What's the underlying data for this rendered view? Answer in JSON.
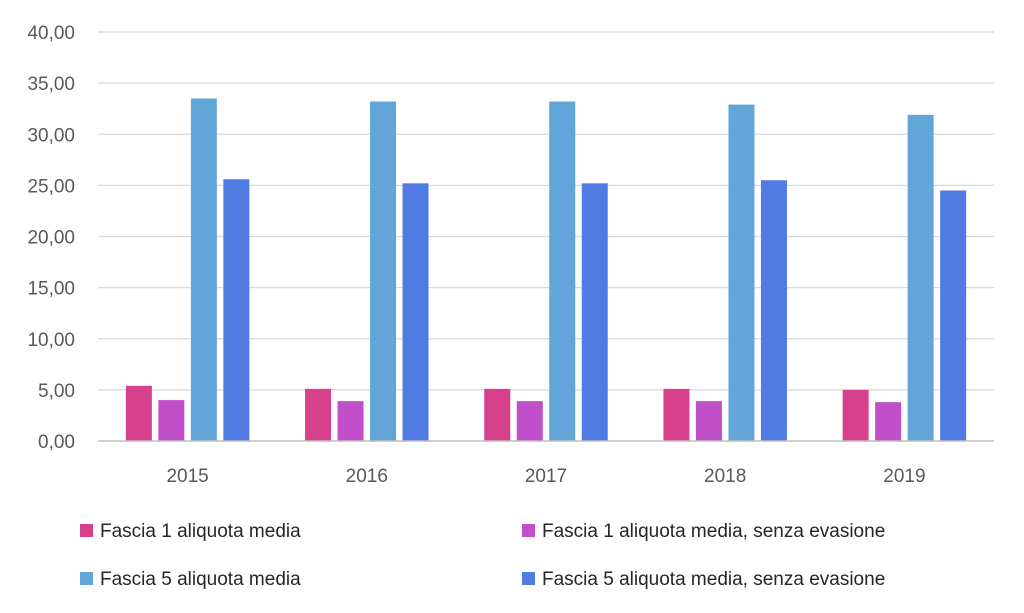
{
  "chart_data": {
    "type": "bar",
    "categories": [
      "2015",
      "2016",
      "2017",
      "2018",
      "2019"
    ],
    "ylim": [
      0,
      40
    ],
    "yticks": [
      "0,00",
      "5,00",
      "10,00",
      "15,00",
      "20,00",
      "25,00",
      "30,00",
      "35,00",
      "40,00"
    ],
    "grid": true,
    "legend_position": "bottom",
    "series": [
      {
        "name": "Fascia 1 aliquota media",
        "color": "#d6408c",
        "values": [
          5.4,
          5.1,
          5.1,
          5.1,
          5.0
        ]
      },
      {
        "name": "Fascia 1 aliquota media, senza evasione",
        "color": "#c04fc9",
        "values": [
          4.0,
          3.9,
          3.9,
          3.9,
          3.8
        ]
      },
      {
        "name": "Fascia 5 aliquota media",
        "color": "#62a6d9",
        "values": [
          33.5,
          33.2,
          33.2,
          32.9,
          31.9
        ]
      },
      {
        "name": "Fascia 5 aliquota media, senza evasione",
        "color": "#4f7be2",
        "values": [
          25.6,
          25.2,
          25.2,
          25.5,
          24.5
        ]
      }
    ]
  }
}
